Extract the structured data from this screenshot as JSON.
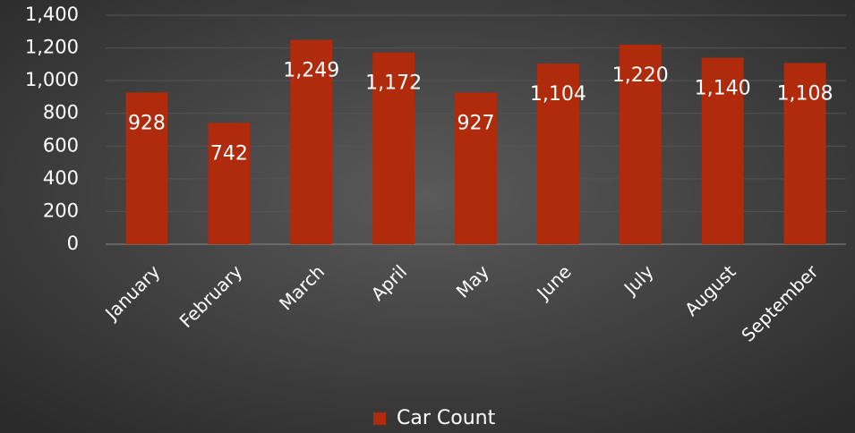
{
  "chart_data": {
    "type": "bar",
    "categories": [
      "January",
      "February",
      "March",
      "April",
      "May",
      "June",
      "July",
      "August",
      "September"
    ],
    "series": [
      {
        "name": "Car Count",
        "color": "#b02a0c",
        "values": [
          928,
          742,
          1249,
          1172,
          927,
          1104,
          1220,
          1140,
          1108
        ],
        "value_labels": [
          "928",
          "742",
          "1,249",
          "1,172",
          "927",
          "1,104",
          "1,220",
          "1,140",
          "1,108"
        ]
      }
    ],
    "ylim": [
      0,
      1400
    ],
    "yticks": [
      0,
      200,
      400,
      600,
      800,
      {
        "value": 1000,
        "label": "1,000"
      },
      {
        "value": 1200,
        "label": "1,200"
      },
      {
        "value": 1400,
        "label": "1,400"
      }
    ],
    "grid": true,
    "legend": "bottom"
  }
}
